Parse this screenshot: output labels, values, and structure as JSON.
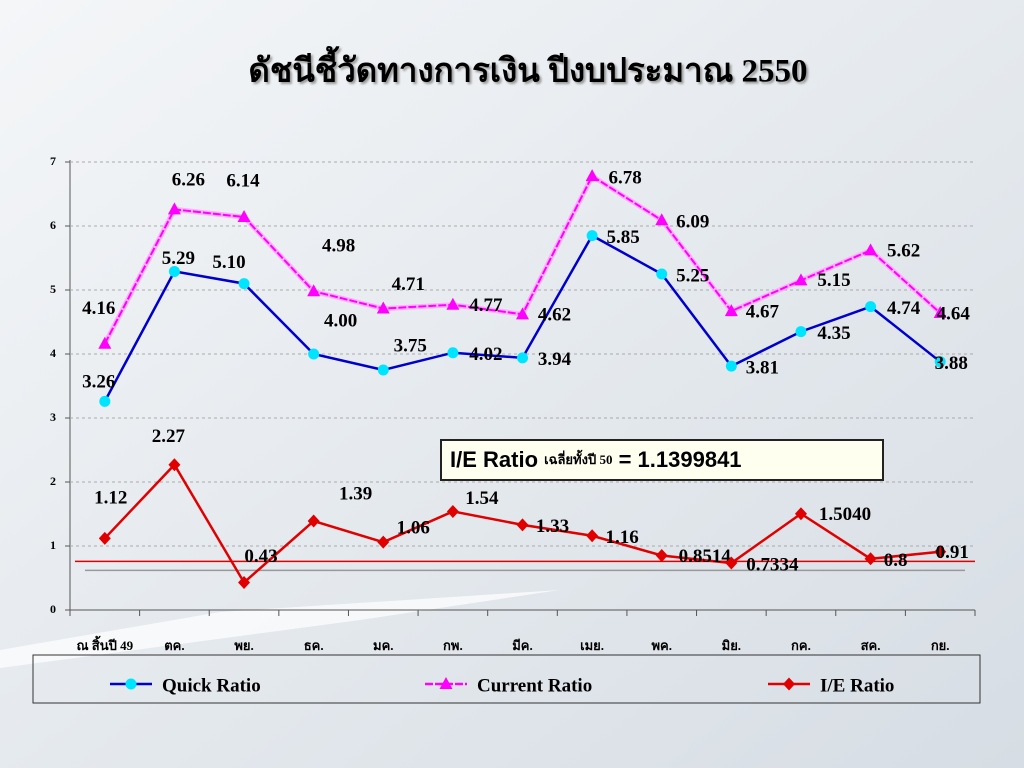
{
  "chart_data": {
    "type": "line",
    "title": "ดัชนีชี้วัดทางการเงิน ปีงบประมาณ 2550",
    "categories": [
      "ณ สิ้นปี 49",
      "ตค.",
      "พย.",
      "ธค.",
      "มค.",
      "กพ.",
      "มีค.",
      "เมย.",
      "พค.",
      "มิย.",
      "กค.",
      "สค.",
      "กย."
    ],
    "series": [
      {
        "name": "Quick Ratio",
        "color": "#0000cc",
        "marker": "circle",
        "marker_color": "#00e5ff",
        "values": [
          3.26,
          5.29,
          5.1,
          4.0,
          3.75,
          4.02,
          3.94,
          5.85,
          5.25,
          3.81,
          4.35,
          4.74,
          3.88
        ],
        "value_labels": [
          "3.26",
          "5.29",
          "5.10",
          "4.00",
          "3.75",
          "4.02",
          "3.94",
          "5.85",
          "5.25",
          "3.81",
          "4.35",
          "4.74",
          "3.88"
        ]
      },
      {
        "name": "Current Ratio",
        "color": "#ff00ff",
        "marker": "triangle",
        "marker_color": "#ff00ff",
        "values": [
          4.16,
          6.26,
          6.14,
          4.98,
          4.71,
          4.77,
          4.62,
          6.78,
          6.09,
          4.67,
          5.15,
          5.62,
          4.64
        ]
      },
      {
        "name": "I/E Ratio",
        "color": "#e00000",
        "marker": "diamond",
        "marker_color": "#e00000",
        "values": [
          1.12,
          2.27,
          0.43,
          1.39,
          1.06,
          1.54,
          1.33,
          1.16,
          0.8514,
          0.7334,
          1.504,
          0.8,
          0.91
        ],
        "value_labels": [
          "1.12",
          "2.27",
          "0.43",
          "1.39",
          "1.06",
          "1.54",
          "1.33",
          "1.16",
          "0.8514",
          "0.7334",
          "1.5040",
          "0.8",
          "0.91"
        ]
      }
    ],
    "reference_lines": [
      {
        "value": 0.76,
        "color": "#e00000"
      },
      {
        "value": 0.62,
        "color": "#999999"
      }
    ],
    "annotation": {
      "label": "I/E Ratio",
      "note": "เฉลี่ยทั้งปี 50",
      "value": "= 1.1399841"
    },
    "ylim": [
      0,
      7
    ],
    "yticks": [
      0,
      1,
      2,
      3,
      4,
      5,
      6,
      7
    ],
    "grid": true,
    "legend": "bottom"
  }
}
